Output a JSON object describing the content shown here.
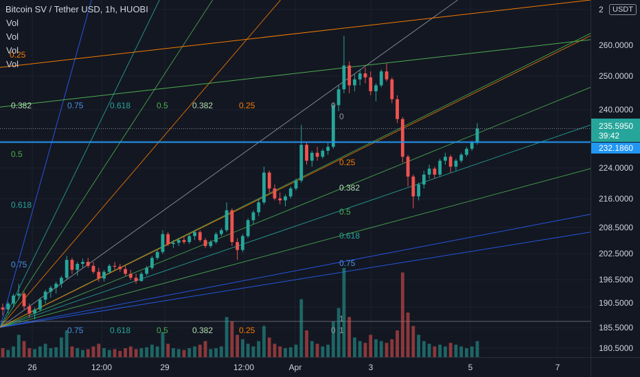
{
  "header": {
    "title": "Bitcoin SV / Tether USD, 1h, HUOBI",
    "indicators": [
      "Vol",
      "Vol",
      "Vol",
      "Vol"
    ],
    "currency": "USDT"
  },
  "chart_data": {
    "type": "candlestick",
    "ylim": [
      178.0,
      268.0
    ],
    "y_ticks": [
      "2",
      "260.0000",
      "250.0000",
      "240.0000",
      "232.1860",
      "224.0000",
      "216.0000",
      "208.5000",
      "202.5000",
      "196.5000",
      "190.5000",
      "185.5000",
      "180.5000"
    ],
    "x_ticks": [
      "26",
      "12:00",
      "29",
      "12:00",
      "Apr",
      "3",
      "5",
      "7"
    ],
    "price_labels": {
      "last": "235.5950",
      "countdown": "39:42",
      "line": "232.1860"
    },
    "horizontal_line": 232.186,
    "fib_levels_top": [
      "0.382",
      "0.75",
      "0.618",
      "0.5",
      "0.382",
      "0.25",
      "0"
    ],
    "fib_levels_bottom": [
      "0.75",
      "0.618",
      "0.5",
      "0.382",
      "0.25",
      "0",
      "1"
    ],
    "fib_levels_left": [
      "0.25",
      "0.5",
      "0.618",
      "0.75"
    ],
    "fib_levels_mid": [
      "0",
      "0.25",
      "0.382",
      "0.5",
      "0.618",
      "0.75"
    ],
    "fan_lines": [
      {
        "x2": 1.0,
        "y2": 259.6,
        "color": "#4caf50"
      },
      {
        "x2": 1.0,
        "y2": 246.0,
        "color": "#4caf50"
      },
      {
        "x2": 1.0,
        "y2": 236.5,
        "color": "#26a69a"
      },
      {
        "x2": 1.0,
        "y2": 225.5,
        "color": "#4caf50"
      },
      {
        "x2": 1.0,
        "y2": 214.0,
        "color": "#2962ff"
      },
      {
        "x2": 1.0,
        "y2": 209.5,
        "color": "#2962ff"
      },
      {
        "x2": 0.775,
        "y2": 268.0,
        "color": "#9598a1"
      },
      {
        "x2": 0.475,
        "y2": 268.0,
        "color": "#f57c00"
      },
      {
        "x2": 0.36,
        "y2": 268.0,
        "color": "#4caf50"
      },
      {
        "x2": 0.27,
        "y2": 268.0,
        "color": "#26a69a"
      },
      {
        "x2": 0.155,
        "y2": 268.0,
        "color": "#2962ff"
      },
      {
        "x2": 1.0,
        "y2": 259.0,
        "color": "#f57c00"
      }
    ],
    "candles": [
      [
        190.5,
        191.5,
        188.5,
        190.0
      ],
      [
        190.0,
        192.0,
        189.0,
        191.5
      ],
      [
        191.5,
        194.0,
        190.5,
        193.5
      ],
      [
        193.5,
        196.5,
        192.5,
        194.0
      ],
      [
        194.0,
        194.5,
        190.0,
        190.8
      ],
      [
        190.8,
        191.5,
        188.0,
        189.0
      ],
      [
        189.0,
        190.5,
        187.5,
        190.0
      ],
      [
        190.0,
        193.0,
        189.5,
        192.5
      ],
      [
        192.5,
        195.0,
        191.5,
        194.5
      ],
      [
        194.5,
        196.0,
        193.0,
        195.5
      ],
      [
        195.5,
        197.0,
        194.0,
        196.5
      ],
      [
        196.5,
        198.5,
        195.5,
        198.0
      ],
      [
        198.0,
        203.5,
        197.5,
        202.5
      ],
      [
        202.5,
        203.0,
        199.0,
        200.0
      ],
      [
        200.0,
        202.0,
        198.5,
        201.5
      ],
      [
        201.5,
        202.8,
        200.5,
        202.0
      ],
      [
        202.0,
        203.0,
        200.5,
        201.0
      ],
      [
        201.0,
        202.0,
        199.0,
        199.5
      ],
      [
        199.5,
        200.5,
        197.0,
        197.8
      ],
      [
        197.8,
        200.0,
        197.0,
        199.5
      ],
      [
        199.5,
        201.5,
        199.0,
        201.0
      ],
      [
        201.0,
        202.0,
        200.0,
        200.8
      ],
      [
        200.8,
        201.5,
        199.5,
        200.2
      ],
      [
        200.2,
        201.0,
        198.5,
        199.0
      ],
      [
        199.0,
        200.0,
        197.5,
        198.0
      ],
      [
        198.0,
        199.0,
        196.5,
        197.2
      ],
      [
        197.2,
        199.5,
        197.0,
        199.0
      ],
      [
        199.0,
        201.0,
        198.5,
        200.5
      ],
      [
        200.5,
        203.5,
        200.0,
        203.0
      ],
      [
        203.0,
        205.0,
        202.5,
        204.5
      ],
      [
        204.5,
        210.0,
        204.0,
        209.0
      ],
      [
        209.0,
        209.5,
        206.0,
        206.5
      ],
      [
        206.5,
        207.5,
        205.5,
        206.8
      ],
      [
        206.8,
        208.0,
        206.0,
        207.5
      ],
      [
        207.5,
        208.5,
        206.5,
        207.0
      ],
      [
        207.0,
        209.0,
        206.5,
        208.5
      ],
      [
        208.5,
        210.0,
        207.5,
        209.5
      ],
      [
        209.5,
        210.0,
        207.0,
        207.5
      ],
      [
        207.5,
        208.0,
        205.5,
        206.0
      ],
      [
        206.0,
        207.5,
        205.5,
        207.0
      ],
      [
        207.0,
        209.5,
        206.5,
        209.0
      ],
      [
        209.0,
        210.5,
        208.5,
        210.0
      ],
      [
        210.0,
        217.0,
        209.5,
        215.0
      ],
      [
        215.0,
        215.5,
        206.0,
        207.0
      ],
      [
        207.0,
        208.0,
        202.5,
        205.0
      ],
      [
        205.0,
        209.0,
        204.5,
        208.5
      ],
      [
        208.5,
        213.0,
        208.0,
        212.5
      ],
      [
        212.5,
        215.0,
        211.5,
        214.5
      ],
      [
        214.5,
        218.0,
        213.5,
        217.0
      ],
      [
        217.0,
        226.0,
        216.5,
        224.5
      ],
      [
        224.5,
        225.0,
        219.5,
        220.5
      ],
      [
        220.5,
        221.5,
        217.5,
        218.0
      ],
      [
        218.0,
        219.5,
        216.5,
        217.5
      ],
      [
        217.5,
        219.0,
        216.0,
        218.5
      ],
      [
        218.5,
        221.0,
        218.0,
        220.5
      ],
      [
        220.5,
        223.0,
        220.0,
        222.5
      ],
      [
        222.5,
        236.5,
        222.0,
        231.5
      ],
      [
        231.5,
        232.0,
        226.5,
        227.5
      ],
      [
        227.5,
        230.0,
        226.0,
        229.5
      ],
      [
        229.5,
        231.0,
        227.5,
        228.5
      ],
      [
        228.5,
        230.5,
        228.0,
        230.0
      ],
      [
        230.0,
        232.0,
        229.0,
        231.0
      ],
      [
        231.0,
        242.0,
        230.5,
        241.5
      ],
      [
        241.5,
        246.5,
        240.0,
        245.5
      ],
      [
        245.5,
        259.0,
        244.5,
        251.5
      ],
      [
        251.5,
        252.5,
        244.5,
        246.5
      ],
      [
        246.5,
        249.5,
        245.0,
        248.0
      ],
      [
        248.0,
        250.5,
        246.5,
        249.5
      ],
      [
        249.5,
        251.0,
        247.0,
        248.5
      ],
      [
        248.5,
        250.0,
        244.0,
        245.0
      ],
      [
        245.0,
        247.0,
        242.5,
        246.5
      ],
      [
        246.5,
        250.5,
        246.0,
        250.0
      ],
      [
        250.0,
        252.0,
        247.5,
        248.0
      ],
      [
        248.0,
        248.5,
        242.0,
        243.0
      ],
      [
        243.0,
        244.0,
        237.0,
        238.0
      ],
      [
        238.0,
        238.5,
        227.0,
        228.5
      ],
      [
        228.5,
        229.0,
        221.0,
        223.5
      ],
      [
        223.5,
        224.0,
        215.5,
        218.5
      ],
      [
        218.5,
        222.0,
        217.5,
        221.5
      ],
      [
        221.5,
        225.0,
        220.5,
        224.0
      ],
      [
        224.0,
        226.5,
        223.0,
        225.5
      ],
      [
        225.5,
        226.0,
        223.0,
        224.0
      ],
      [
        224.0,
        228.0,
        223.5,
        227.5
      ],
      [
        227.5,
        229.5,
        226.5,
        228.5
      ],
      [
        228.5,
        229.0,
        224.5,
        226.0
      ],
      [
        226.0,
        228.0,
        225.0,
        227.5
      ],
      [
        227.5,
        229.5,
        227.0,
        229.0
      ],
      [
        229.0,
        231.0,
        228.5,
        230.5
      ],
      [
        230.5,
        232.5,
        230.0,
        232.0
      ],
      [
        232.0,
        237.0,
        231.5,
        235.6
      ]
    ],
    "volume": [
      0.1,
      0.08,
      0.12,
      0.25,
      0.18,
      0.1,
      0.09,
      0.12,
      0.15,
      0.1,
      0.11,
      0.22,
      0.3,
      0.12,
      0.1,
      0.08,
      0.09,
      0.12,
      0.15,
      0.1,
      0.08,
      0.09,
      0.07,
      0.1,
      0.12,
      0.09,
      0.1,
      0.11,
      0.14,
      0.12,
      0.28,
      0.15,
      0.1,
      0.09,
      0.08,
      0.1,
      0.12,
      0.14,
      0.18,
      0.09,
      0.1,
      0.12,
      0.45,
      0.4,
      0.25,
      0.2,
      0.15,
      0.12,
      0.18,
      0.35,
      0.22,
      0.15,
      0.12,
      0.1,
      0.11,
      0.14,
      0.65,
      0.3,
      0.18,
      0.15,
      0.12,
      0.14,
      0.4,
      0.55,
      1.0,
      0.45,
      0.22,
      0.18,
      0.16,
      0.25,
      0.2,
      0.18,
      0.16,
      0.2,
      0.3,
      0.95,
      0.5,
      0.35,
      0.25,
      0.18,
      0.15,
      0.12,
      0.14,
      0.12,
      0.16,
      0.14,
      0.12,
      0.1,
      0.12,
      0.18
    ]
  }
}
